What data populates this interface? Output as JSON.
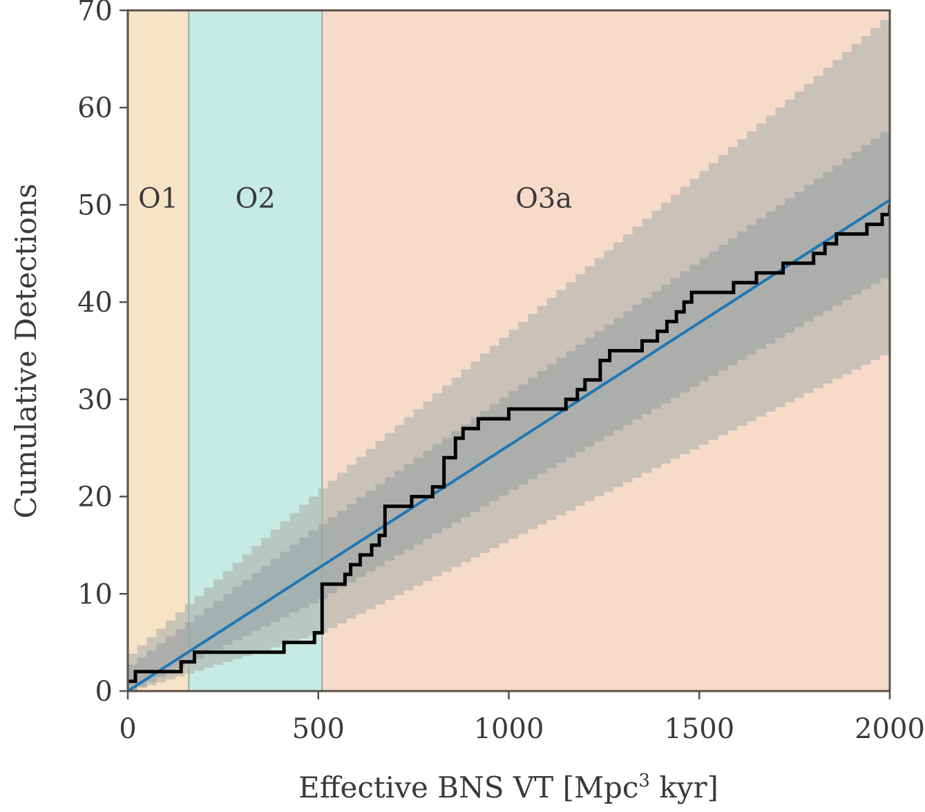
{
  "chart_data": {
    "type": "line",
    "xlabel": "Effective BNS VT [Mpc³ kyr]",
    "xlabel_parts": {
      "main": "Effective BNS VT [Mpc",
      "sup": "3",
      "tail": " kyr]"
    },
    "ylabel": "Cumulative Detections",
    "xlim": [
      0,
      2000
    ],
    "ylim": [
      0,
      70
    ],
    "xticks": [
      0,
      500,
      1000,
      1500,
      2000
    ],
    "yticks": [
      0,
      10,
      20,
      30,
      40,
      50,
      60,
      70
    ],
    "grid": false,
    "regions": [
      {
        "label": "O1",
        "x_start": 0,
        "x_end": 160,
        "color": "#f7e3c6"
      },
      {
        "label": "O2",
        "x_start": 160,
        "x_end": 510,
        "color": "#c6ebe3"
      },
      {
        "label": "O3a",
        "x_start": 510,
        "x_end": 2000,
        "color": "#f7dbc9"
      }
    ],
    "bands": [
      {
        "kind": "outer",
        "x": [
          0,
          500,
          2000
        ],
        "lower": [
          0,
          6,
          35
        ],
        "upper": [
          3,
          20,
          69
        ]
      },
      {
        "kind": "inner",
        "x": [
          0,
          500,
          2000
        ],
        "lower": [
          0,
          9.5,
          43
        ],
        "upper": [
          2,
          16.5,
          57.5
        ]
      }
    ],
    "series": [
      {
        "kind": "expected",
        "color": "#1f77b4",
        "x": [
          0,
          2000
        ],
        "y": [
          0,
          50.5
        ]
      },
      {
        "kind": "observed",
        "color": "#000000",
        "x": [
          0,
          20,
          40,
          140,
          175,
          410,
          460,
          490,
          510,
          545,
          570,
          585,
          610,
          640,
          660,
          675,
          745,
          800,
          830,
          860,
          880,
          920,
          960,
          1000,
          1040,
          1080,
          1110,
          1150,
          1180,
          1200,
          1240,
          1265,
          1310,
          1330,
          1350,
          1370,
          1390,
          1415,
          1440,
          1460,
          1480,
          1520,
          1590,
          1620,
          1650,
          1680,
          1720,
          1760,
          1800,
          1830,
          1860,
          1910,
          1940,
          1980,
          2000
        ],
        "y": [
          1,
          2,
          2,
          3,
          4,
          5,
          5,
          6,
          11,
          11,
          12,
          13,
          14,
          15,
          16,
          19,
          20,
          21,
          24,
          26,
          27,
          28,
          28,
          29,
          29,
          29,
          29,
          30,
          31,
          32,
          34,
          35,
          35,
          35,
          36,
          36,
          37,
          38,
          39,
          40,
          41,
          41,
          42,
          42,
          43,
          43,
          44,
          44,
          45,
          46,
          47,
          47,
          48,
          49,
          50
        ]
      }
    ]
  },
  "colors": {
    "axes": "#5a4f48",
    "outer_band": "#aeb2ae",
    "inner_band": "#939ea3",
    "o2_band_tint": "#6ec6d6"
  }
}
